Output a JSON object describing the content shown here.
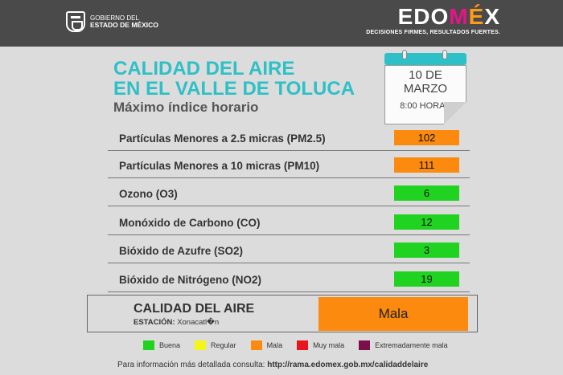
{
  "header": {
    "gov_line1": "GOBIERNO DEL",
    "gov_line2": "ESTADO DE MÉXICO",
    "logo_part1": "EDO",
    "logo_part2": "M",
    "logo_part3": "É",
    "logo_part4": "X",
    "tagline": "DECISIONES FIRMES, RESULTADOS FUERTES."
  },
  "title": {
    "line1": "CALIDAD DEL AIRE",
    "line2": "EN EL VALLE DE TOLUCA",
    "line3": "Máximo índice horario"
  },
  "calendar": {
    "day": "10 DE",
    "month": "MARZO",
    "time": "8:00 HORAS"
  },
  "pollutants": [
    {
      "label": "Partículas Menores a 2.5 micras (PM2.5)",
      "value": "102",
      "color": "#fb8a0e"
    },
    {
      "label": "Partículas Menores a 10 micras (PM10)",
      "value": "111",
      "color": "#fb8a0e"
    },
    {
      "label": "Ozono (O3)",
      "value": "6",
      "color": "#21d321"
    },
    {
      "label": "Monóxido de Carbono (CO)",
      "value": "12",
      "color": "#21d321"
    },
    {
      "label": "Bióxido de Azufre (SO2)",
      "value": "3",
      "color": "#21d321"
    },
    {
      "label": "Bióxido de Nitrógeno (NO2)",
      "value": "19",
      "color": "#21d321"
    }
  ],
  "summary": {
    "title": "CALIDAD DEL AIRE",
    "station_label": "ESTACIÓN:",
    "station_name": "Xonacatl�n",
    "value": "Mala",
    "color": "#fb8a0e"
  },
  "legend": [
    {
      "label": "Buena",
      "color": "#21d321"
    },
    {
      "label": "Regular",
      "color": "#f5f51a"
    },
    {
      "label": "Mala",
      "color": "#fb8a0e"
    },
    {
      "label": "Muy mala",
      "color": "#e8141e"
    },
    {
      "label": "Extremadamente mala",
      "color": "#7a0f4a"
    }
  ],
  "footer": {
    "text": "Para información más detallada consulta:",
    "link": "http://rama.edomex.gob.mx/calidaddelaire"
  }
}
